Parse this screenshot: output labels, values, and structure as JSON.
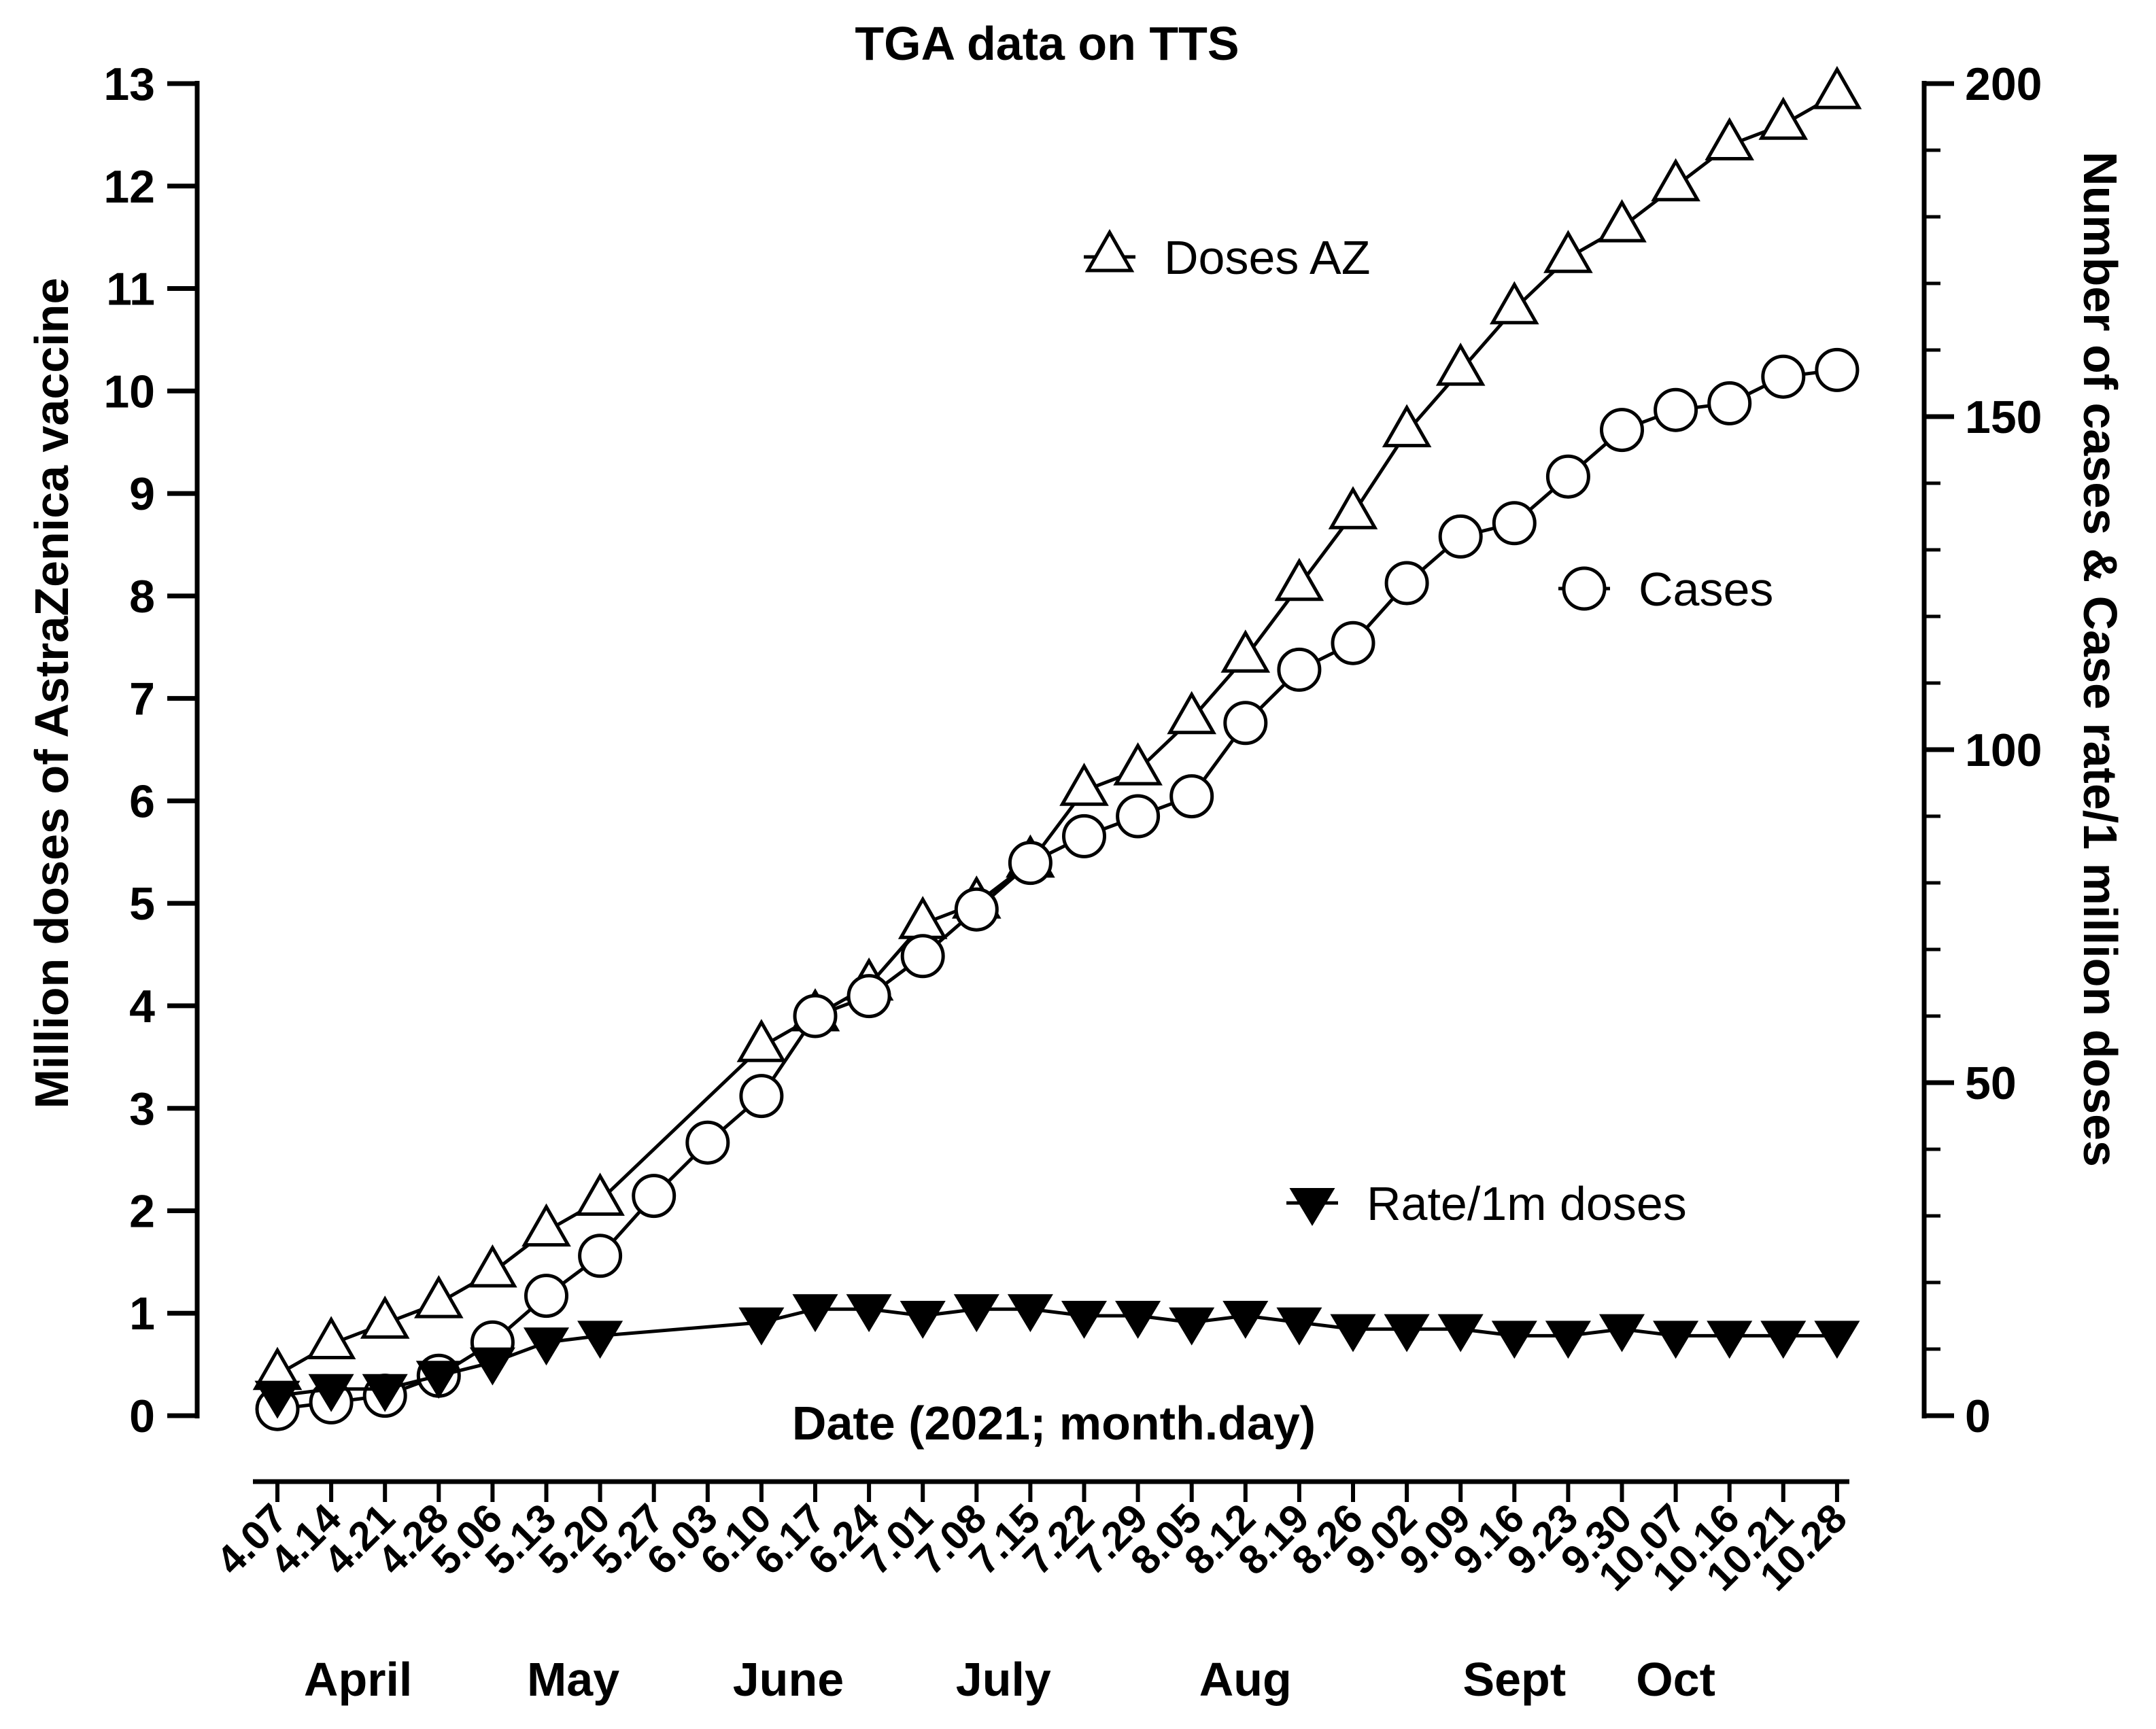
{
  "chart_data": {
    "type": "line",
    "title": "TGA data on TTS",
    "xlabel": "Date (2021; month.day)",
    "ylabel_left": "Million doses of AstraZenica vaccine",
    "ylabel_right": "Number of cases & Case rate/1 million doses",
    "ylim_left": [
      0,
      13
    ],
    "ylim_right": [
      0,
      200
    ],
    "left_ticks": [
      "0",
      "1",
      "2",
      "3",
      "4",
      "5",
      "6",
      "7",
      "8",
      "9",
      "10",
      "11",
      "12",
      "13"
    ],
    "right_ticks": [
      "0",
      "50",
      "100",
      "150",
      "200"
    ],
    "categories": [
      "4.07",
      "4.14",
      "4.21",
      "4.28",
      "5.06",
      "5.13",
      "5.20",
      "5.27",
      "6.03",
      "6.10",
      "6.17",
      "6.24",
      "7.01",
      "7.08",
      "7.15",
      "7.22",
      "7.29",
      "8.05",
      "8.12",
      "8.19",
      "8.26",
      "9.02",
      "9.09",
      "9.16",
      "9.23",
      "9.30",
      "10.07",
      "10.16",
      "10.21",
      "10.28"
    ],
    "months": [
      {
        "label": "April",
        "from": 0,
        "to": 3
      },
      {
        "label": "May",
        "from": 4,
        "to": 7
      },
      {
        "label": "June",
        "from": 8,
        "to": 11
      },
      {
        "label": "July",
        "from": 12,
        "to": 15
      },
      {
        "label": "Aug",
        "from": 16,
        "to": 20
      },
      {
        "label": "Sept",
        "from": 21,
        "to": 25
      },
      {
        "label": "Oct",
        "from": 25,
        "to": 27
      }
    ],
    "series": [
      {
        "name": "Doses AZ",
        "axis": "left",
        "marker": "triangle-open",
        "values": [
          0.4,
          0.7,
          0.9,
          1.1,
          1.4,
          1.8,
          2.1,
          null,
          null,
          3.6,
          3.9,
          4.2,
          4.8,
          5.0,
          5.4,
          6.1,
          6.3,
          6.8,
          7.4,
          8.1,
          8.8,
          9.6,
          10.2,
          10.8,
          11.3,
          11.6,
          12.0,
          12.4,
          12.6,
          12.9
        ]
      },
      {
        "name": "Cases",
        "axis": "right",
        "marker": "circle-open",
        "values": [
          1,
          2,
          3,
          6,
          11,
          18,
          24,
          33,
          41,
          48,
          60,
          63,
          69,
          76,
          83,
          87,
          90,
          93,
          104,
          112,
          116,
          125,
          132,
          134,
          141,
          148,
          151,
          152,
          156,
          157
        ]
      },
      {
        "name": "Rate/1m doses",
        "axis": "right",
        "marker": "triangle-down-filled",
        "values": [
          3,
          4,
          4,
          6,
          8,
          11,
          12,
          null,
          null,
          14,
          16,
          16,
          15,
          16,
          16,
          15,
          15,
          14,
          15,
          14,
          13,
          13,
          13,
          12,
          12,
          13,
          12,
          12,
          12,
          12
        ]
      }
    ],
    "legend": [
      {
        "label": "Doses AZ",
        "marker": "triangle-open"
      },
      {
        "label": "Cases",
        "marker": "circle-open"
      },
      {
        "label": "Rate/1m doses",
        "marker": "triangle-down-filled"
      }
    ]
  }
}
